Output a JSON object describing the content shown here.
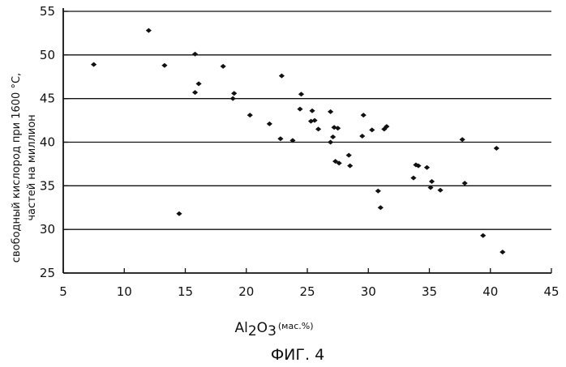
{
  "chart_data": {
    "type": "scatter",
    "title": "",
    "xlabel": {
      "main": "Al",
      "sub1": "2",
      "mid": "O",
      "sub2": "3",
      "units": "(мас.%)"
    },
    "ylabel": [
      "свободный кислород при 1600 °С,",
      "частей на миллион"
    ],
    "caption": "ФИГ. 4",
    "xlim": [
      5,
      45
    ],
    "ylim": [
      25,
      55
    ],
    "xticks": [
      5,
      10,
      15,
      20,
      25,
      30,
      35,
      40,
      45
    ],
    "yticks": [
      25,
      30,
      35,
      40,
      45,
      50,
      55
    ],
    "grid": "horizontal",
    "points": [
      {
        "x": 7.5,
        "y": 48.9
      },
      {
        "x": 12.0,
        "y": 52.8
      },
      {
        "x": 13.3,
        "y": 48.8
      },
      {
        "x": 14.5,
        "y": 31.8
      },
      {
        "x": 15.8,
        "y": 50.1
      },
      {
        "x": 16.1,
        "y": 46.7
      },
      {
        "x": 15.8,
        "y": 45.7
      },
      {
        "x": 18.1,
        "y": 48.7
      },
      {
        "x": 19.0,
        "y": 45.6
      },
      {
        "x": 18.9,
        "y": 45.0
      },
      {
        "x": 20.3,
        "y": 43.1
      },
      {
        "x": 21.9,
        "y": 42.1
      },
      {
        "x": 22.9,
        "y": 47.6
      },
      {
        "x": 22.8,
        "y": 40.4
      },
      {
        "x": 23.8,
        "y": 40.2
      },
      {
        "x": 24.5,
        "y": 45.5
      },
      {
        "x": 24.4,
        "y": 43.8
      },
      {
        "x": 25.4,
        "y": 43.6
      },
      {
        "x": 25.3,
        "y": 42.4
      },
      {
        "x": 25.6,
        "y": 42.5
      },
      {
        "x": 25.9,
        "y": 41.5
      },
      {
        "x": 26.9,
        "y": 43.5
      },
      {
        "x": 27.2,
        "y": 41.7
      },
      {
        "x": 27.5,
        "y": 41.6
      },
      {
        "x": 27.1,
        "y": 40.6
      },
      {
        "x": 26.9,
        "y": 40.0
      },
      {
        "x": 27.3,
        "y": 37.8
      },
      {
        "x": 27.6,
        "y": 37.6
      },
      {
        "x": 28.4,
        "y": 38.5
      },
      {
        "x": 28.5,
        "y": 37.3
      },
      {
        "x": 29.6,
        "y": 43.1
      },
      {
        "x": 29.5,
        "y": 40.7
      },
      {
        "x": 30.3,
        "y": 41.4
      },
      {
        "x": 31.3,
        "y": 41.5
      },
      {
        "x": 31.5,
        "y": 41.8
      },
      {
        "x": 30.8,
        "y": 34.4
      },
      {
        "x": 31.0,
        "y": 32.5
      },
      {
        "x": 33.9,
        "y": 37.4
      },
      {
        "x": 34.1,
        "y": 37.3
      },
      {
        "x": 34.8,
        "y": 37.1
      },
      {
        "x": 33.7,
        "y": 35.9
      },
      {
        "x": 35.2,
        "y": 35.5
      },
      {
        "x": 35.1,
        "y": 34.8
      },
      {
        "x": 35.9,
        "y": 34.5
      },
      {
        "x": 37.7,
        "y": 40.3
      },
      {
        "x": 37.9,
        "y": 35.3
      },
      {
        "x": 39.4,
        "y": 29.3
      },
      {
        "x": 40.5,
        "y": 39.3
      },
      {
        "x": 41.0,
        "y": 27.4
      }
    ]
  }
}
